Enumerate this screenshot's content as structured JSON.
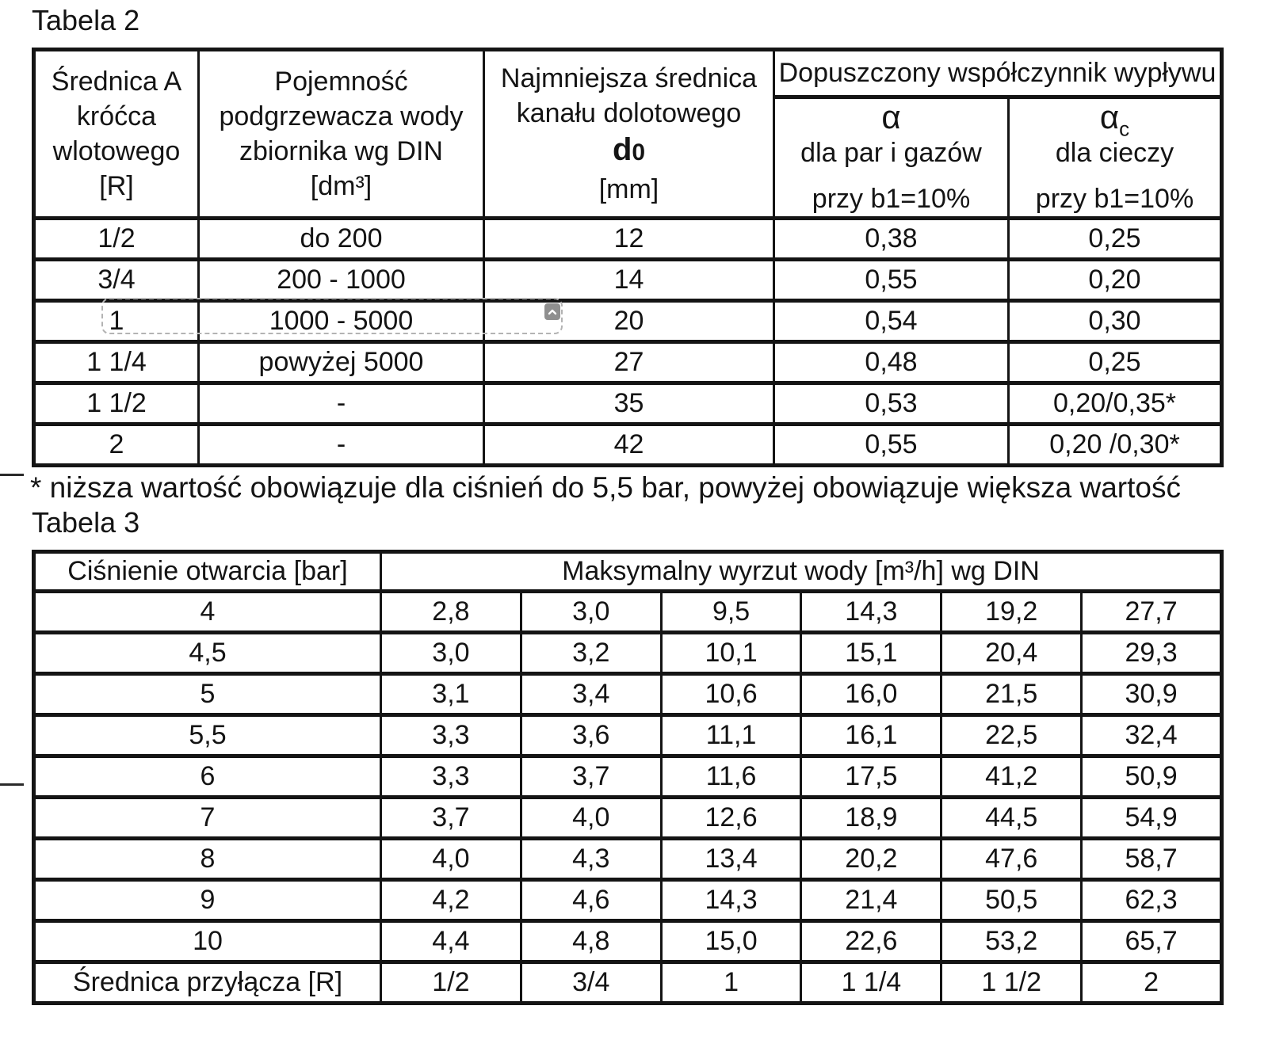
{
  "page": {
    "title_table2": "Tabela 2",
    "title_table3": "Tabela 3",
    "footnote": "* niższa wartość obowiązuje dla ciśnień do 5,5 bar, powyżej obowiązuje większa wartość"
  },
  "colors": {
    "table_border": "#141414",
    "text": "#141414",
    "overlay_button_bg": "#8f8f8f",
    "overlay_dash": "#b3b3b3",
    "background": "#ffffff"
  },
  "table2": {
    "header": {
      "col1_lines": [
        "Średnica A",
        "króćca",
        "wlotowego",
        "[R]"
      ],
      "col2_lines": [
        "Pojemność",
        "podgrzewacza wody",
        "zbiornika wg DIN",
        "[dm³]"
      ],
      "col3_line1": "Najmniejsza średnica",
      "col3_line2": "kanału dolotowego",
      "col3_symbol_main": "d",
      "col3_symbol_sub": "0",
      "col3_unit": "[mm]",
      "merged": "Dopuszczony współczynnik wypływu",
      "col4_symbol": "α",
      "col4_line2": "dla par i gazów",
      "col4_line3": "przy b1=10%",
      "col5_symbol": "α",
      "col5_symbol_sub": "c",
      "col5_line2": "dla cieczy",
      "col5_line3": "przy b1=10%"
    },
    "rows": [
      [
        "1/2",
        "do 200",
        "12",
        "0,38",
        "0,25"
      ],
      [
        "3/4",
        "200 - 1000",
        "14",
        "0,55",
        "0,20"
      ],
      [
        "1",
        "1000 - 5000",
        "20",
        "0,54",
        "0,30"
      ],
      [
        "1 1/4",
        "powyżej 5000",
        "27",
        "0,48",
        "0,25"
      ],
      [
        "1 1/2",
        "-",
        "35",
        "0,53",
        "0,20/0,35*"
      ],
      [
        "2",
        "-",
        "42",
        "0,55",
        "0,20 /0,30*"
      ]
    ]
  },
  "table3": {
    "header": {
      "col1": "Ciśnienie otwarcia [bar]",
      "merged": "Maksymalny wyrzut wody [m³/h] wg DIN"
    },
    "rows": [
      [
        "4",
        "2,8",
        "3,0",
        "9,5",
        "14,3",
        "19,2",
        "27,7"
      ],
      [
        "4,5",
        "3,0",
        "3,2",
        "10,1",
        "15,1",
        "20,4",
        "29,3"
      ],
      [
        "5",
        "3,1",
        "3,4",
        "10,6",
        "16,0",
        "21,5",
        "30,9"
      ],
      [
        "5,5",
        "3,3",
        "3,6",
        "11,1",
        "16,1",
        "22,5",
        "32,4"
      ],
      [
        "6",
        "3,3",
        "3,7",
        "11,6",
        "17,5",
        "41,2",
        "50,9"
      ],
      [
        "7",
        "3,7",
        "4,0",
        "12,6",
        "18,9",
        "44,5",
        "54,9"
      ],
      [
        "8",
        "4,0",
        "4,3",
        "13,4",
        "20,2",
        "47,6",
        "58,7"
      ],
      [
        "9",
        "4,2",
        "4,6",
        "14,3",
        "21,4",
        "50,5",
        "62,3"
      ],
      [
        "10",
        "4,4",
        "4,8",
        "15,0",
        "22,6",
        "53,2",
        "65,7"
      ],
      [
        "Średnica przyłącza [R]",
        "1/2",
        "3/4",
        "1",
        "1 1/4",
        "1 1/2",
        "2"
      ]
    ]
  },
  "overlay": {
    "icon": "chevron-up"
  }
}
